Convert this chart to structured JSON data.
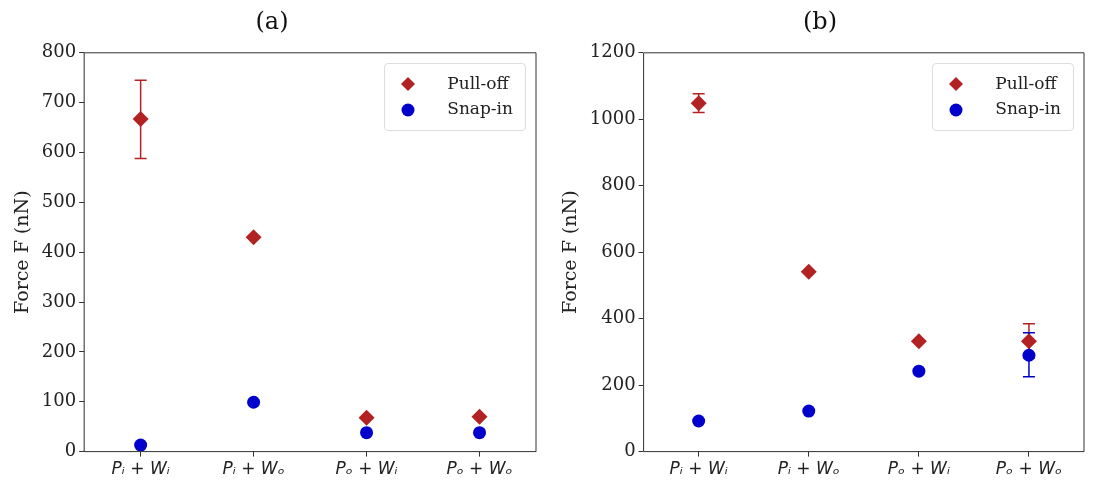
{
  "chart_data": [
    {
      "type": "scatter",
      "title": "(a)",
      "ylabel": "Force F (nN)",
      "categories": [
        "Pᵢ + Wᵢ",
        "Pᵢ + Wₒ",
        "Pₒ + Wᵢ",
        "Pₒ + Wₒ"
      ],
      "ylim": [
        0,
        800
      ],
      "yticks": [
        0,
        100,
        200,
        300,
        400,
        500,
        600,
        700,
        800
      ],
      "grid": false,
      "legend": "top right",
      "series": [
        {
          "name": "Pull-off",
          "color": "#b22222",
          "marker": "diamond",
          "values": [
            667,
            430,
            68,
            70
          ],
          "errors": [
            [
              588,
              745
            ],
            null,
            null,
            null
          ]
        },
        {
          "name": "Snap-in",
          "color": "#0000cd",
          "marker": "circle",
          "values": [
            13,
            99,
            38,
            38
          ]
        }
      ]
    },
    {
      "type": "scatter",
      "title": "(b)",
      "ylabel": "Force F (nN)",
      "categories": [
        "Pᵢ + Wᵢ",
        "Pᵢ + Wₒ",
        "Pₒ + Wᵢ",
        "Pₒ + Wₒ"
      ],
      "ylim": [
        0,
        1200
      ],
      "yticks": [
        0,
        200,
        400,
        600,
        800,
        1000,
        1200
      ],
      "grid": false,
      "legend": "top right",
      "series": [
        {
          "name": "Pull-off",
          "color": "#b22222",
          "marker": "diamond",
          "values": [
            1048,
            541,
            332,
            332
          ],
          "errors": [
            [
              1020,
              1077
            ],
            null,
            null,
            [
              282,
              385
            ]
          ]
        },
        {
          "name": "Snap-in",
          "color": "#0000cd",
          "marker": "circle",
          "values": [
            92,
            122,
            242,
            290
          ],
          "errors": [
            null,
            null,
            null,
            [
              225,
              358
            ]
          ]
        }
      ]
    }
  ]
}
